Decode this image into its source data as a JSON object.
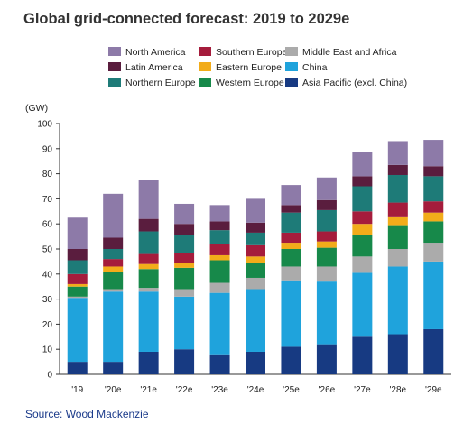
{
  "chart_data": {
    "type": "bar",
    "stacked": true,
    "title": "Global grid-connected forecast: 2019 to 2029e",
    "ylabel": "(GW)",
    "xlabel": "",
    "ylim": [
      0,
      100
    ],
    "yticks": [
      0,
      10,
      20,
      30,
      40,
      50,
      60,
      70,
      80,
      90,
      100
    ],
    "grid": false,
    "legend_position": "top",
    "source": "Source: Wood Mackenzie",
    "categories": [
      "'19",
      "'20e",
      "'21e",
      "'22e",
      "'23e",
      "'24e",
      "'25e",
      "'26e",
      "'27e",
      "'28e",
      "'29e"
    ],
    "series": [
      {
        "name": "Asia Pacific (excl. China)",
        "color": "#173a82",
        "values": [
          5,
          5,
          9,
          10,
          8,
          9,
          11,
          12,
          15,
          16,
          18
        ]
      },
      {
        "name": "China",
        "color": "#1fa3dc",
        "values": [
          25.5,
          28,
          24,
          21,
          24.5,
          25,
          26.5,
          25,
          25.5,
          27,
          27
        ]
      },
      {
        "name": "Middle East and Africa",
        "color": "#ababab",
        "values": [
          0.5,
          1,
          1.5,
          3,
          4,
          4.5,
          5.5,
          6,
          6.5,
          7,
          7.5
        ]
      },
      {
        "name": "Western Europe",
        "color": "#17894a",
        "values": [
          4,
          7,
          7.5,
          8.5,
          9,
          6,
          7,
          7.5,
          8.5,
          9.5,
          8.5
        ]
      },
      {
        "name": "Eastern Europe",
        "color": "#f2ac1a",
        "values": [
          1,
          2,
          2,
          2,
          2,
          2.5,
          2.5,
          2.5,
          4.5,
          3.5,
          3.5
        ]
      },
      {
        "name": "Southern Europe",
        "color": "#a51c3c",
        "values": [
          4,
          3,
          4,
          4,
          4.5,
          4.5,
          4,
          4,
          5,
          5.5,
          4.5
        ]
      },
      {
        "name": "Northern Europe",
        "color": "#1e7b78",
        "values": [
          5.5,
          4,
          9,
          7,
          5.5,
          5,
          8,
          8.5,
          10,
          11,
          10
        ]
      },
      {
        "name": "Latin America",
        "color": "#5a1d3e",
        "values": [
          4.5,
          4.5,
          5,
          4.5,
          3.5,
          4,
          3,
          4,
          4,
          4,
          4
        ]
      },
      {
        "name": "North America",
        "color": "#8d7aa8",
        "values": [
          12.5,
          17.5,
          15.5,
          8,
          6.5,
          9.5,
          8,
          9,
          9.5,
          9.5,
          10.5
        ]
      }
    ]
  },
  "legend": {
    "items": [
      {
        "name": "North America",
        "color": "#8d7aa8"
      },
      {
        "name": "Southern Europe",
        "color": "#a51c3c"
      },
      {
        "name": "Middle East and Africa",
        "color": "#ababab"
      },
      {
        "name": "Latin America",
        "color": "#5a1d3e"
      },
      {
        "name": "Eastern Europe",
        "color": "#f2ac1a"
      },
      {
        "name": "China",
        "color": "#1fa3dc"
      },
      {
        "name": "Northern Europe",
        "color": "#1e7b78"
      },
      {
        "name": "Western Europe",
        "color": "#17894a"
      },
      {
        "name": "Asia Pacific (excl. China)",
        "color": "#173a82"
      }
    ]
  }
}
